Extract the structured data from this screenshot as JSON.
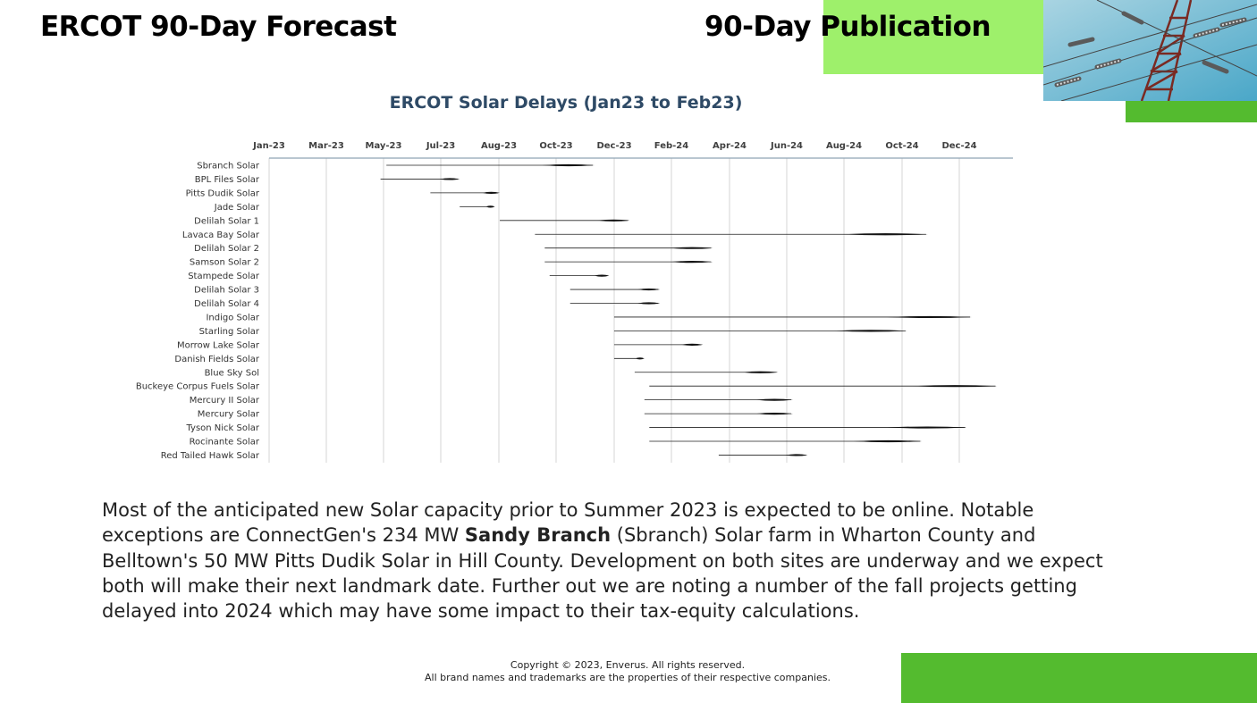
{
  "header": {
    "title_left": "ERCOT 90-Day Forecast",
    "title_right": "90-Day Publication"
  },
  "colors": {
    "accent_light_green": "#9ef06b",
    "accent_green": "#54bb2f",
    "chart_title": "#2e4a66"
  },
  "icons": {
    "tower_image": "transmission-tower-photo"
  },
  "chart_data": {
    "type": "bar",
    "subtype": "gantt-delay-arrows",
    "title": "ERCOT Solar Delays (Jan23 to Feb23)",
    "x_ticks": [
      "Jan-23",
      "Mar-23",
      "May-23",
      "Jul-23",
      "Aug-23",
      "Oct-23",
      "Dec-23",
      "Feb-24",
      "Apr-24",
      "Jun-24",
      "Aug-24",
      "Oct-24",
      "Dec-24"
    ],
    "x_range": [
      "2023-01-01",
      "2025-01-31"
    ],
    "grid": true,
    "legend": "none",
    "projects": [
      {
        "name": "Sbranch Solar",
        "start": "2023-05-01",
        "end": "2023-11-30"
      },
      {
        "name": "BPL Files Solar",
        "start": "2023-04-25",
        "end": "2023-07-15"
      },
      {
        "name": "Pitts Dudik Solar",
        "start": "2023-06-15",
        "end": "2023-08-25"
      },
      {
        "name": "Jade Solar",
        "start": "2023-07-15",
        "end": "2023-08-20"
      },
      {
        "name": "Delilah Solar 1",
        "start": "2023-08-25",
        "end": "2024-01-05"
      },
      {
        "name": "Lavaca Bay Solar",
        "start": "2023-09-30",
        "end": "2024-11-05"
      },
      {
        "name": "Delilah Solar 2",
        "start": "2023-10-10",
        "end": "2024-03-30"
      },
      {
        "name": "Samson Solar 2",
        "start": "2023-10-10",
        "end": "2024-03-30"
      },
      {
        "name": "Stampede Solar",
        "start": "2023-10-15",
        "end": "2023-12-15"
      },
      {
        "name": "Delilah Solar 3",
        "start": "2023-11-05",
        "end": "2024-02-05"
      },
      {
        "name": "Delilah Solar 4",
        "start": "2023-11-05",
        "end": "2024-02-05"
      },
      {
        "name": "Indigo Solar",
        "start": "2023-12-20",
        "end": "2024-12-20"
      },
      {
        "name": "Starling Solar",
        "start": "2023-12-20",
        "end": "2024-10-15"
      },
      {
        "name": "Morrow Lake Solar",
        "start": "2023-12-20",
        "end": "2024-03-20"
      },
      {
        "name": "Danish Fields Solar",
        "start": "2023-12-20",
        "end": "2024-01-20"
      },
      {
        "name": "Blue Sky Sol",
        "start": "2024-01-10",
        "end": "2024-06-05"
      },
      {
        "name": "Buckeye Corpus Fuels Solar",
        "start": "2024-01-25",
        "end": "2025-01-15"
      },
      {
        "name": "Mercury II Solar",
        "start": "2024-01-20",
        "end": "2024-06-20"
      },
      {
        "name": "Mercury Solar",
        "start": "2024-01-20",
        "end": "2024-06-20"
      },
      {
        "name": "Tyson Nick Solar",
        "start": "2024-01-25",
        "end": "2024-12-15"
      },
      {
        "name": "Rocinante Solar",
        "start": "2024-01-25",
        "end": "2024-10-30"
      },
      {
        "name": "Red Tailed Hawk Solar",
        "start": "2024-04-05",
        "end": "2024-07-05"
      }
    ]
  },
  "body": {
    "text_before": "Most of the anticipated new Solar capacity prior to Summer 2023 is expected to be online. Notable exceptions are ConnectGen's 234 MW ",
    "text_bold": "Sandy Branch",
    "text_after": " (Sbranch) Solar farm in Wharton County and Belltown's 50 MW Pitts Dudik Solar in Hill County. Development on both sites are underway and we expect both will make their next landmark date. Further out we are noting a number of the fall projects getting delayed into 2024 which may have some impact to their tax-equity calculations."
  },
  "footer": {
    "line1": "Copyright © 2023, Enverus. All rights reserved.",
    "line2": "All brand names and trademarks are the properties of their respective companies."
  }
}
